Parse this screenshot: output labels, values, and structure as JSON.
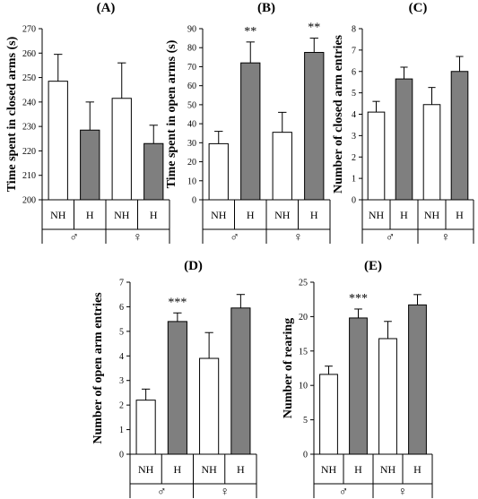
{
  "figure": {
    "x_categories": [
      "NH",
      "H",
      "NH",
      "H"
    ],
    "group_labels": [
      "♂",
      "♀"
    ],
    "colors": {
      "NH": "#ffffff",
      "H": "#7f7f7f",
      "axis": "#000000"
    }
  },
  "chart_data": [
    {
      "type": "bar",
      "title": "(A)",
      "ylabel": "Time spent in closed arms (s)",
      "ylim": [
        200,
        270
      ],
      "yticks": [
        200,
        210,
        220,
        230,
        240,
        250,
        260,
        270
      ],
      "categories": [
        "NH",
        "H",
        "NH",
        "H"
      ],
      "groups": [
        "♂",
        "♀"
      ],
      "values": [
        248.5,
        228.5,
        241.5,
        223
      ],
      "errors": [
        11,
        11.5,
        14.5,
        7.5
      ],
      "annotations": [
        "",
        "",
        "",
        ""
      ]
    },
    {
      "type": "bar",
      "title": "(B)",
      "ylabel": "Time spent in open arms (s)",
      "ylim": [
        0,
        90
      ],
      "yticks": [
        0,
        10,
        20,
        30,
        40,
        50,
        60,
        70,
        80,
        90
      ],
      "categories": [
        "NH",
        "H",
        "NH",
        "H"
      ],
      "groups": [
        "♂",
        "♀"
      ],
      "values": [
        29.5,
        72,
        35.5,
        77.5
      ],
      "errors": [
        6.5,
        11,
        10.5,
        7.5
      ],
      "annotations": [
        "",
        "**",
        "",
        "**"
      ]
    },
    {
      "type": "bar",
      "title": "(C)",
      "ylabel": "Number of closed arm entries",
      "ylim": [
        0,
        8
      ],
      "yticks": [
        0,
        1,
        2,
        3,
        4,
        5,
        6,
        7,
        8
      ],
      "categories": [
        "NH",
        "H",
        "NH",
        "H"
      ],
      "groups": [
        "♂",
        "♀"
      ],
      "values": [
        4.1,
        5.65,
        4.45,
        6.0
      ],
      "errors": [
        0.5,
        0.55,
        0.8,
        0.7
      ],
      "annotations": [
        "",
        "",
        "",
        ""
      ]
    },
    {
      "type": "bar",
      "title": "(D)",
      "ylabel": "Number of open arm entries",
      "ylim": [
        0,
        7
      ],
      "yticks": [
        0,
        1,
        2,
        3,
        4,
        5,
        6,
        7
      ],
      "categories": [
        "NH",
        "H",
        "NH",
        "H"
      ],
      "groups": [
        "♂",
        "♀"
      ],
      "values": [
        2.2,
        5.4,
        3.9,
        5.95
      ],
      "errors": [
        0.45,
        0.35,
        1.05,
        0.55
      ],
      "annotations": [
        "",
        "***",
        "",
        ""
      ]
    },
    {
      "type": "bar",
      "title": "(E)",
      "ylabel": "Number of rearing",
      "ylim": [
        0,
        25
      ],
      "yticks": [
        0,
        5,
        10,
        15,
        20,
        25
      ],
      "categories": [
        "NH",
        "H",
        "NH",
        "H"
      ],
      "groups": [
        "♂",
        "♀"
      ],
      "values": [
        11.6,
        19.8,
        16.8,
        21.7
      ],
      "errors": [
        1.2,
        1.3,
        2.5,
        1.5
      ],
      "annotations": [
        "",
        "***",
        "",
        ""
      ]
    }
  ]
}
